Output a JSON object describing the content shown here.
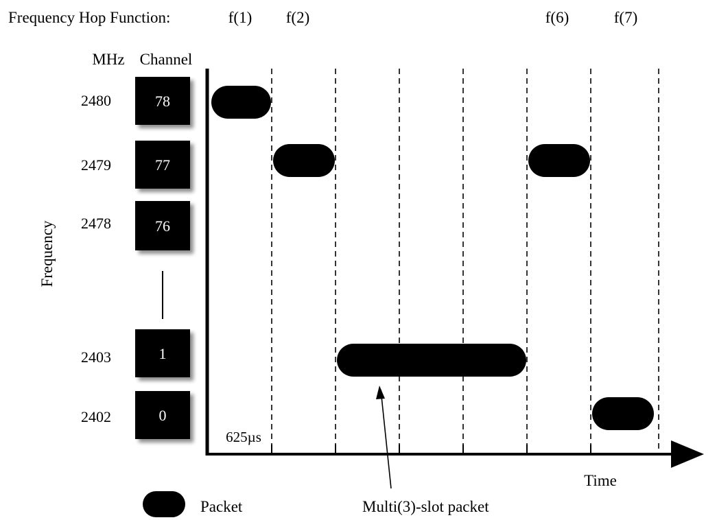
{
  "header": {
    "label": "Frequency Hop Function:",
    "hops": [
      "f(1)",
      "f(2)",
      "f(6)",
      "f(7)"
    ]
  },
  "columns": {
    "mhz": "MHz",
    "channel": "Channel"
  },
  "axis": {
    "y_label": "Frequency",
    "x_label": "Time",
    "slot_label": "625µs"
  },
  "rows": [
    {
      "mhz": "2480",
      "channel": "78"
    },
    {
      "mhz": "2479",
      "channel": "77"
    },
    {
      "mhz": "2478",
      "channel": "76"
    },
    {
      "mhz": "2403",
      "channel": "1"
    },
    {
      "mhz": "2402",
      "channel": "0"
    }
  ],
  "packets": [
    {
      "channel": "78",
      "start_slot": 0,
      "slots": 1
    },
    {
      "channel": "77",
      "start_slot": 1,
      "slots": 1
    },
    {
      "channel": "1",
      "start_slot": 2,
      "slots": 3
    },
    {
      "channel": "77",
      "start_slot": 5,
      "slots": 1
    },
    {
      "channel": "0",
      "start_slot": 6,
      "slots": 1
    }
  ],
  "legend": {
    "packet": "Packet",
    "multi_slot": "Multi(3)-slot packet"
  }
}
